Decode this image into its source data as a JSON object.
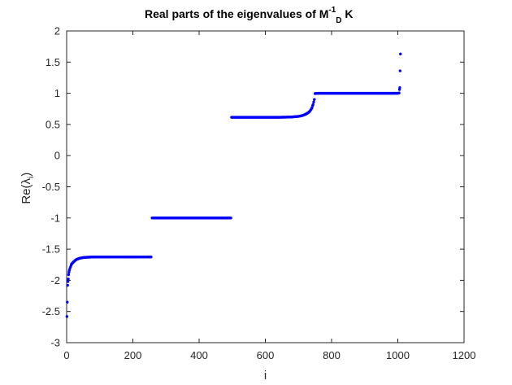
{
  "chart_data": {
    "type": "scatter",
    "title": {
      "prefix": "Real parts of the eigenvalues of M",
      "superscript": "-1",
      "subscript": "D",
      "suffix": " K"
    },
    "xlabel": "i",
    "ylabel": {
      "prefix": "Re(",
      "symbol": "λ",
      "subscript": "i",
      "suffix": ")"
    },
    "xlim": [
      0,
      1200
    ],
    "ylim": [
      -3,
      2
    ],
    "xticks": [
      0,
      200,
      400,
      600,
      800,
      1000,
      1200
    ],
    "yticks": [
      -3,
      -2.5,
      -2,
      -1.5,
      -1,
      -0.5,
      0,
      0.5,
      1,
      1.5,
      2
    ],
    "xtick_labels": [
      "0",
      "200",
      "400",
      "600",
      "800",
      "1000",
      "1200"
    ],
    "ytick_labels": [
      "-3",
      "-2.5",
      "-2",
      "-1.5",
      "-1",
      "-0.5",
      "0",
      "0.5",
      "1",
      "1.5",
      "2"
    ],
    "grid": false,
    "marker_color": "#0000ff",
    "series": [
      {
        "points": [
          [
            1,
            -2.58
          ],
          [
            2,
            -2.35
          ],
          [
            3,
            -2.08
          ],
          [
            4,
            -2.02
          ],
          [
            5,
            -1.98
          ],
          [
            6,
            -1.91
          ],
          [
            7,
            -1.87
          ],
          [
            8,
            -1.84
          ],
          [
            10,
            -1.81
          ],
          [
            12,
            -1.78
          ],
          [
            15,
            -1.74
          ],
          [
            18,
            -1.72
          ],
          [
            22,
            -1.7
          ],
          [
            26,
            -1.68
          ],
          [
            30,
            -1.665
          ],
          [
            35,
            -1.655
          ],
          [
            40,
            -1.645
          ],
          [
            45,
            -1.64
          ],
          [
            50,
            -1.635
          ],
          [
            55,
            -1.632
          ],
          [
            60,
            -1.63
          ],
          [
            70,
            -1.628
          ],
          [
            80,
            -1.626
          ],
          [
            90,
            -1.625
          ],
          [
            100,
            -1.625
          ],
          [
            120,
            -1.625
          ],
          [
            140,
            -1.625
          ],
          [
            160,
            -1.625
          ],
          [
            180,
            -1.625
          ],
          [
            200,
            -1.625
          ],
          [
            220,
            -1.625
          ],
          [
            240,
            -1.625
          ],
          [
            255,
            -1.625
          ],
          [
            258,
            -1.0
          ],
          [
            280,
            -1.0
          ],
          [
            300,
            -1.0
          ],
          [
            320,
            -1.0
          ],
          [
            340,
            -1.0
          ],
          [
            360,
            -1.0
          ],
          [
            380,
            -1.0
          ],
          [
            400,
            -1.0
          ],
          [
            420,
            -1.0
          ],
          [
            440,
            -1.0
          ],
          [
            460,
            -1.0
          ],
          [
            480,
            -1.0
          ],
          [
            496,
            -1.0
          ],
          [
            498,
            0.615
          ],
          [
            520,
            0.615
          ],
          [
            540,
            0.615
          ],
          [
            560,
            0.615
          ],
          [
            580,
            0.615
          ],
          [
            600,
            0.615
          ],
          [
            620,
            0.615
          ],
          [
            640,
            0.615
          ],
          [
            660,
            0.617
          ],
          [
            680,
            0.62
          ],
          [
            690,
            0.625
          ],
          [
            700,
            0.63
          ],
          [
            710,
            0.64
          ],
          [
            718,
            0.655
          ],
          [
            724,
            0.67
          ],
          [
            730,
            0.69
          ],
          [
            734,
            0.71
          ],
          [
            738,
            0.74
          ],
          [
            741,
            0.77
          ],
          [
            744,
            0.82
          ],
          [
            746,
            0.86
          ],
          [
            748,
            0.9
          ],
          [
            750,
            0.995
          ],
          [
            760,
            1.0
          ],
          [
            780,
            1.0
          ],
          [
            800,
            1.0
          ],
          [
            820,
            1.0
          ],
          [
            840,
            1.0
          ],
          [
            860,
            1.0
          ],
          [
            880,
            1.0
          ],
          [
            900,
            1.0
          ],
          [
            920,
            1.0
          ],
          [
            940,
            1.0
          ],
          [
            960,
            1.0
          ],
          [
            980,
            1.0
          ],
          [
            1000,
            1.0
          ],
          [
            1004,
            1.005
          ],
          [
            1005,
            1.06
          ],
          [
            1006,
            1.09
          ],
          [
            1007,
            1.36
          ],
          [
            1008,
            1.63
          ]
        ]
      }
    ]
  }
}
